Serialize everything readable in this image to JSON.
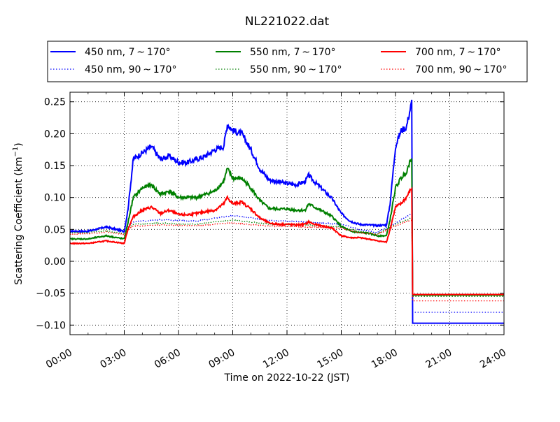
{
  "chart_data": {
    "type": "line",
    "title": "NL221022.dat",
    "xlabel": "Time on 2022-10-22 (JST)",
    "ylabel_main": "Scattering Coefficient (km",
    "ylabel_sup": "−1",
    "ylabel_close": ")",
    "xlim": [
      0,
      24
    ],
    "ylim": [
      -0.115,
      0.265
    ],
    "x_ticks": [
      0,
      3,
      6,
      9,
      12,
      15,
      18,
      21,
      24
    ],
    "x_tick_labels": [
      "00:00",
      "03:00",
      "06:00",
      "09:00",
      "12:00",
      "15:00",
      "18:00",
      "21:00",
      "24:00"
    ],
    "y_ticks": [
      -0.1,
      -0.05,
      0.0,
      0.05,
      0.1,
      0.15,
      0.2,
      0.25
    ],
    "y_tick_labels": [
      "−0.10",
      "−0.05",
      "0.00",
      "0.05",
      "0.10",
      "0.15",
      "0.20",
      "0.25"
    ],
    "grid": true,
    "legend_position": "top, above plot (3 columns)",
    "series": [
      {
        "name": "450 nm, 7 ~ 170°",
        "color": "#0000ff",
        "style": "solid",
        "x": [
          0,
          1,
          2,
          3,
          3.2,
          3.5,
          4,
          4.5,
          5,
          5.5,
          6,
          6.5,
          7,
          7.5,
          8,
          8.5,
          8.7,
          9,
          9.5,
          10,
          10.5,
          11,
          11.5,
          12,
          12.5,
          13,
          13.2,
          13.5,
          14,
          14.5,
          15,
          15.5,
          16,
          16.5,
          17,
          17.5,
          17.7,
          18,
          18.3,
          18.6,
          18.9,
          18.95,
          24
        ],
        "y": [
          0.047,
          0.047,
          0.054,
          0.047,
          0.08,
          0.16,
          0.17,
          0.18,
          0.16,
          0.165,
          0.155,
          0.155,
          0.16,
          0.165,
          0.175,
          0.18,
          0.215,
          0.205,
          0.2,
          0.175,
          0.145,
          0.128,
          0.125,
          0.122,
          0.12,
          0.125,
          0.135,
          0.125,
          0.112,
          0.098,
          0.075,
          0.063,
          0.058,
          0.057,
          0.056,
          0.057,
          0.09,
          0.18,
          0.205,
          0.21,
          0.25,
          -0.097,
          -0.097
        ]
      },
      {
        "name": "450 nm, 90 ~ 170°",
        "color": "#0000ff",
        "style": "dotted",
        "x": [
          0,
          1,
          2,
          3,
          3.2,
          3.5,
          5,
          7,
          9,
          11,
          13,
          15,
          16,
          17,
          18,
          18.9,
          18.95,
          24
        ],
        "y": [
          0.048,
          0.048,
          0.052,
          0.046,
          0.055,
          0.062,
          0.065,
          0.063,
          0.072,
          0.064,
          0.062,
          0.058,
          0.05,
          0.045,
          0.06,
          0.075,
          -0.08,
          -0.08
        ]
      },
      {
        "name": "550 nm, 7 ~ 170°",
        "color": "#008000",
        "style": "solid",
        "x": [
          0,
          1,
          2,
          3,
          3.2,
          3.5,
          4,
          4.5,
          5,
          5.5,
          6,
          6.5,
          7,
          7.5,
          8,
          8.5,
          8.7,
          9,
          9.5,
          10,
          10.5,
          11,
          11.5,
          12,
          12.5,
          13,
          13.2,
          13.5,
          14,
          14.5,
          15,
          15.5,
          16,
          16.5,
          17,
          17.5,
          17.7,
          18,
          18.3,
          18.6,
          18.9,
          18.95,
          24
        ],
        "y": [
          0.035,
          0.035,
          0.04,
          0.035,
          0.06,
          0.1,
          0.115,
          0.12,
          0.105,
          0.11,
          0.1,
          0.1,
          0.1,
          0.105,
          0.11,
          0.125,
          0.145,
          0.13,
          0.13,
          0.115,
          0.095,
          0.083,
          0.082,
          0.082,
          0.08,
          0.08,
          0.09,
          0.085,
          0.078,
          0.07,
          0.055,
          0.047,
          0.045,
          0.044,
          0.04,
          0.04,
          0.065,
          0.115,
          0.13,
          0.14,
          0.165,
          -0.053,
          -0.053
        ]
      },
      {
        "name": "550 nm, 90 ~ 170°",
        "color": "#008000",
        "style": "dotted",
        "x": [
          0,
          1,
          2,
          3,
          3.2,
          3.5,
          5,
          7,
          9,
          11,
          13,
          15,
          16,
          17,
          18,
          18.9,
          18.95,
          24
        ],
        "y": [
          0.045,
          0.045,
          0.048,
          0.043,
          0.052,
          0.058,
          0.06,
          0.058,
          0.065,
          0.058,
          0.057,
          0.054,
          0.047,
          0.043,
          0.058,
          0.068,
          -0.055,
          -0.055
        ]
      },
      {
        "name": "700 nm, 7 ~ 170°",
        "color": "#ff0000",
        "style": "solid",
        "x": [
          0,
          1,
          2,
          3,
          3.2,
          3.5,
          4,
          4.5,
          5,
          5.5,
          6,
          6.5,
          7,
          7.5,
          8,
          8.5,
          8.7,
          9,
          9.5,
          10,
          10.5,
          11,
          11.5,
          12,
          12.5,
          13,
          13.2,
          13.5,
          14,
          14.5,
          15,
          15.5,
          16,
          16.5,
          17,
          17.5,
          17.7,
          18,
          18.3,
          18.6,
          18.9,
          18.95,
          24
        ],
        "y": [
          0.028,
          0.028,
          0.032,
          0.028,
          0.05,
          0.07,
          0.08,
          0.085,
          0.075,
          0.08,
          0.073,
          0.073,
          0.075,
          0.078,
          0.08,
          0.09,
          0.1,
          0.09,
          0.093,
          0.082,
          0.068,
          0.06,
          0.058,
          0.058,
          0.057,
          0.058,
          0.062,
          0.058,
          0.055,
          0.052,
          0.04,
          0.037,
          0.037,
          0.035,
          0.032,
          0.03,
          0.05,
          0.085,
          0.09,
          0.1,
          0.115,
          -0.052,
          -0.052
        ]
      },
      {
        "name": "700 nm, 90 ~ 170°",
        "color": "#ff0000",
        "style": "dotted",
        "x": [
          0,
          1,
          2,
          3,
          3.2,
          3.5,
          5,
          7,
          9,
          11,
          13,
          15,
          16,
          17,
          18,
          18.9,
          18.95,
          24
        ],
        "y": [
          0.043,
          0.043,
          0.046,
          0.042,
          0.05,
          0.055,
          0.057,
          0.056,
          0.06,
          0.055,
          0.054,
          0.052,
          0.045,
          0.042,
          0.056,
          0.065,
          -0.062,
          -0.062
        ]
      }
    ]
  }
}
